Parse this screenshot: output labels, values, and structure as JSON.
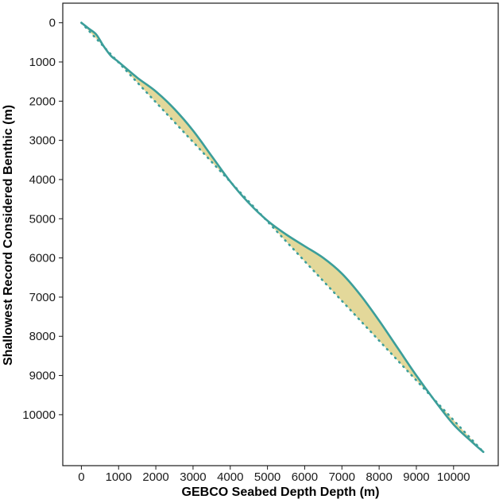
{
  "chart_data": {
    "type": "line",
    "title": "",
    "xlabel": "GEBCO Seabed Depth Depth (m)",
    "ylabel": "Shallowest Record Considered Benthic (m)",
    "xlim": [
      -500,
      11200
    ],
    "ylim": [
      -500,
      11300
    ],
    "y_inverted": true,
    "grid": false,
    "legend": "none",
    "x_ticks": [
      0,
      1000,
      2000,
      3000,
      4000,
      5000,
      6000,
      7000,
      8000,
      9000,
      10000
    ],
    "y_ticks": [
      0,
      1000,
      2000,
      3000,
      4000,
      5000,
      6000,
      7000,
      8000,
      9000,
      10000
    ],
    "colors": {
      "line": "#3b9e9a",
      "fill": "#e3d89a",
      "frame": "#1a1a1a"
    },
    "series": [
      {
        "style": "solid",
        "x": [
          0,
          200,
          400,
          600,
          800,
          1000,
          1500,
          2000,
          2500,
          3000,
          3500,
          4000,
          4500,
          5000,
          5500,
          6000,
          6500,
          7000,
          7500,
          8000,
          8500,
          9000,
          9500,
          10000,
          10500,
          10800
        ],
        "y": [
          0,
          150,
          300,
          600,
          850,
          1000,
          1400,
          1750,
          2200,
          2750,
          3400,
          4050,
          4600,
          5050,
          5400,
          5700,
          6000,
          6400,
          6950,
          7600,
          8300,
          9000,
          9650,
          10250,
          10700,
          10950
        ]
      },
      {
        "style": "dotted",
        "x": [
          0,
          10800
        ],
        "y": [
          0,
          10950
        ]
      }
    ]
  }
}
